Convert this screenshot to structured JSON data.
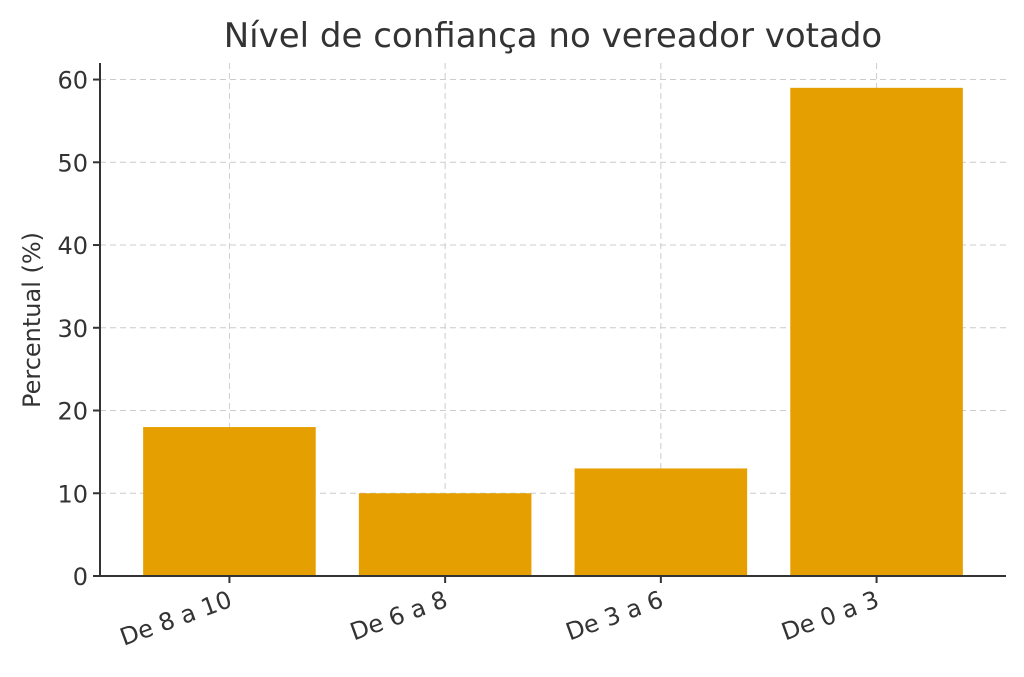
{
  "chart_data": {
    "type": "bar",
    "title": "Nível de confiança no vereador votado",
    "xlabel": "",
    "ylabel": "Percentual (%)",
    "categories": [
      "De 8 a 10",
      "De 6 a 8",
      "De 3 a 6",
      "De 0 a 3"
    ],
    "values": [
      18,
      10,
      13,
      59
    ],
    "ylim": [
      0,
      62
    ],
    "yticks": [
      0,
      10,
      20,
      30,
      40,
      50,
      60
    ],
    "grid": true,
    "bar_color": "#E69F00",
    "x_tick_rotation_deg": -20
  }
}
